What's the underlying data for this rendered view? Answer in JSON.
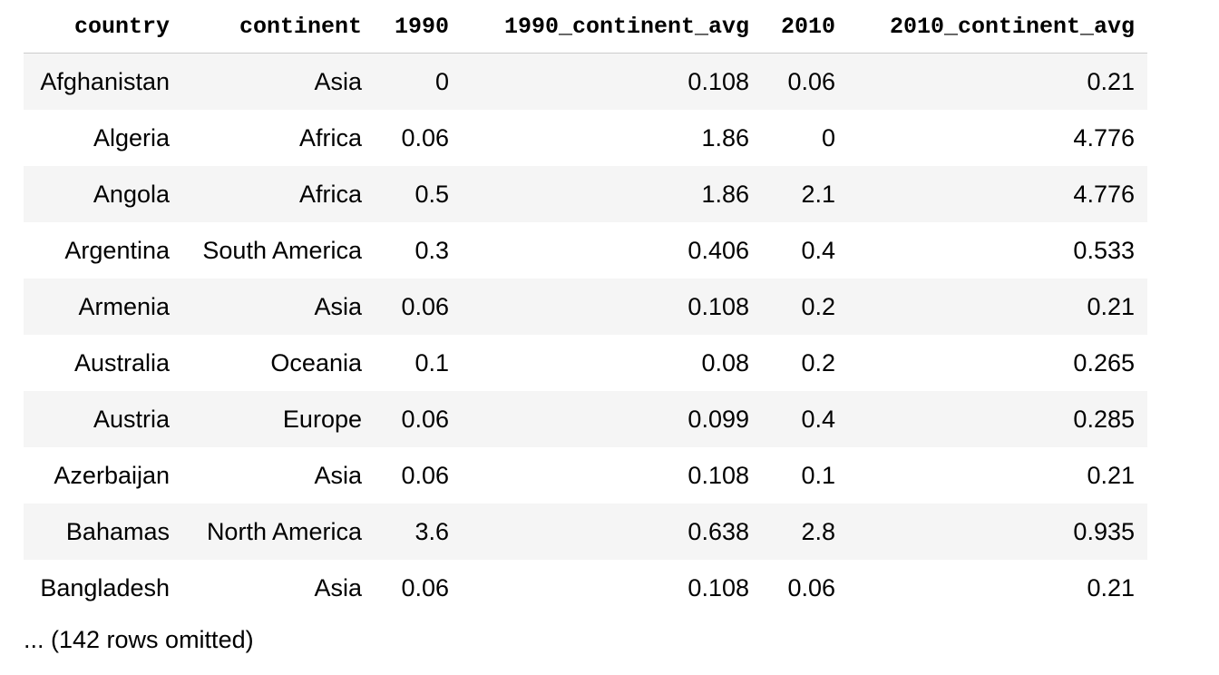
{
  "table": {
    "columns": [
      "country",
      "continent",
      "1990",
      "1990_continent_avg",
      "2010",
      "2010_continent_avg"
    ],
    "rows": [
      [
        "Afghanistan",
        "Asia",
        "0",
        "0.108",
        "0.06",
        "0.21"
      ],
      [
        "Algeria",
        "Africa",
        "0.06",
        "1.86",
        "0",
        "4.776"
      ],
      [
        "Angola",
        "Africa",
        "0.5",
        "1.86",
        "2.1",
        "4.776"
      ],
      [
        "Argentina",
        "South America",
        "0.3",
        "0.406",
        "0.4",
        "0.533"
      ],
      [
        "Armenia",
        "Asia",
        "0.06",
        "0.108",
        "0.2",
        "0.21"
      ],
      [
        "Australia",
        "Oceania",
        "0.1",
        "0.08",
        "0.2",
        "0.265"
      ],
      [
        "Austria",
        "Europe",
        "0.06",
        "0.099",
        "0.4",
        "0.285"
      ],
      [
        "Azerbaijan",
        "Asia",
        "0.06",
        "0.108",
        "0.1",
        "0.21"
      ],
      [
        "Bahamas",
        "North America",
        "3.6",
        "0.638",
        "2.8",
        "0.935"
      ],
      [
        "Bangladesh",
        "Asia",
        "0.06",
        "0.108",
        "0.06",
        "0.21"
      ]
    ],
    "omitted_note": "... (142 rows omitted)"
  }
}
